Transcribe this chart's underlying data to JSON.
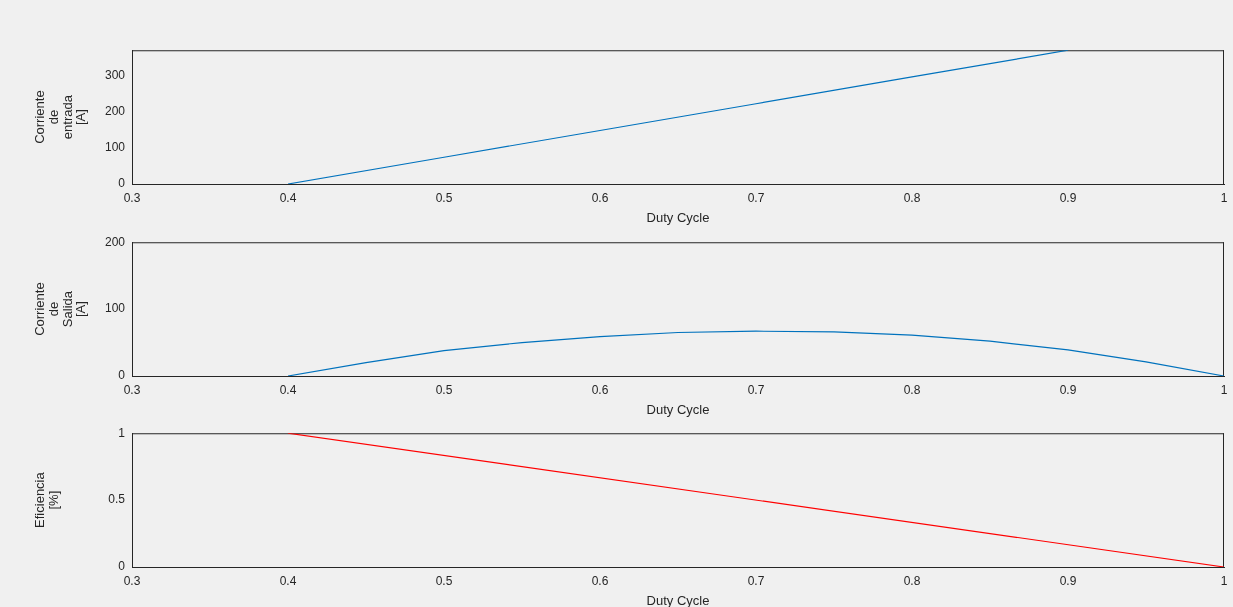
{
  "chart_data": [
    {
      "type": "line",
      "xlabel": "Duty Cycle",
      "ylabel": "Corriente de entrada [A]",
      "xlim": [
        0.3,
        1
      ],
      "xticks": [
        0.3,
        0.4,
        0.5,
        0.6,
        0.7,
        0.8,
        0.9,
        1
      ],
      "ylim": [
        0,
        370
      ],
      "yticks": [
        0,
        100,
        200,
        300
      ],
      "grid": false,
      "x": [
        0.4,
        0.5,
        0.6,
        0.7,
        0.8,
        0.9
      ],
      "series": [
        {
          "color": "#0072bd",
          "values": [
            0,
            74,
            148,
            222,
            296,
            370
          ]
        }
      ]
    },
    {
      "type": "line",
      "xlabel": "Duty Cycle",
      "ylabel": "Corriente de Salida [A]",
      "xlim": [
        0.3,
        1
      ],
      "xticks": [
        0.3,
        0.4,
        0.5,
        0.6,
        0.7,
        0.8,
        0.9,
        1
      ],
      "ylim": [
        0,
        200
      ],
      "yticks": [
        0,
        100,
        200
      ],
      "grid": false,
      "x": [
        0.4,
        0.45,
        0.5,
        0.55,
        0.6,
        0.65,
        0.7,
        0.75,
        0.8,
        0.85,
        0.9,
        0.95,
        1
      ],
      "series": [
        {
          "color": "#0072bd",
          "values": [
            0,
            20,
            38,
            50,
            59,
            65,
            67,
            66,
            61,
            52,
            39,
            21,
            0
          ]
        }
      ]
    },
    {
      "type": "line",
      "xlabel": "Duty Cycle",
      "ylabel": "Eficiencia [%]",
      "xlim": [
        0.3,
        1
      ],
      "xticks": [
        0.3,
        0.4,
        0.5,
        0.6,
        0.7,
        0.8,
        0.9,
        1
      ],
      "ylim": [
        0,
        1
      ],
      "yticks": [
        0,
        0.5,
        1
      ],
      "grid": false,
      "x": [
        0.4,
        1
      ],
      "series": [
        {
          "color": "#ff0000",
          "values": [
            1,
            0
          ]
        }
      ]
    }
  ]
}
